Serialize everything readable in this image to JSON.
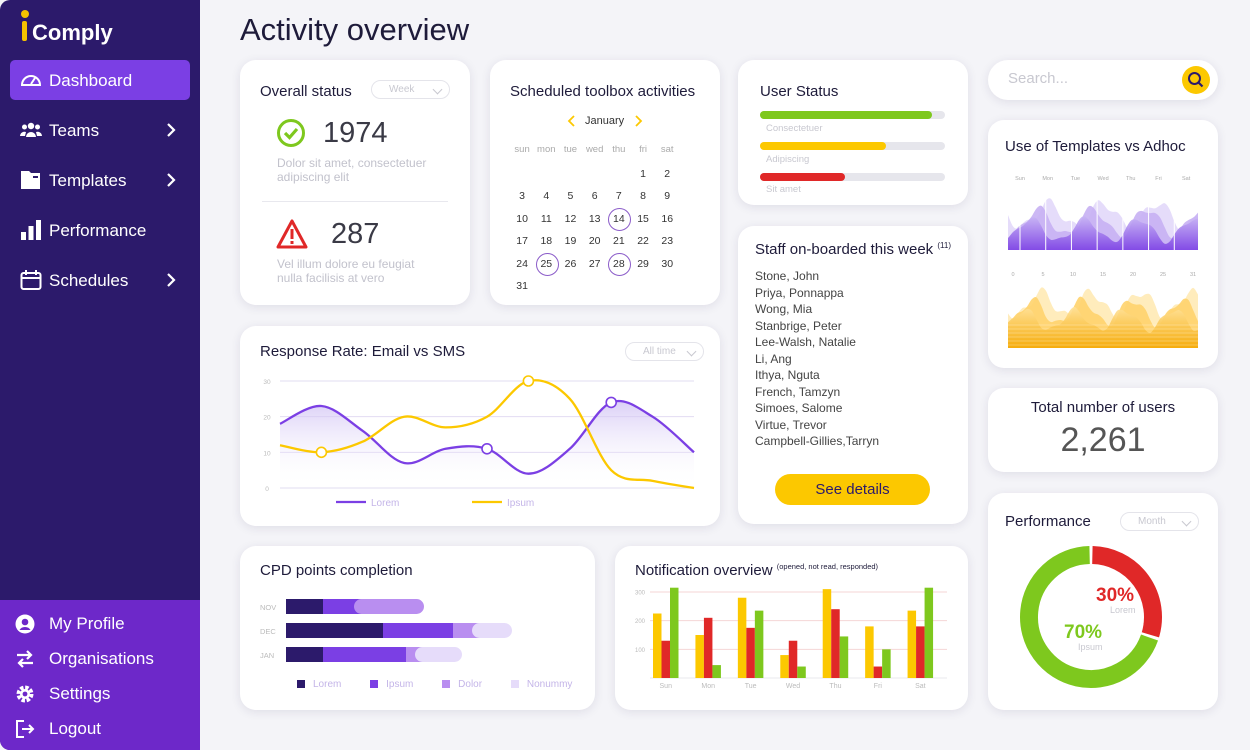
{
  "app": {
    "logo_text": "Comply",
    "page_title": "Activity overview"
  },
  "colors": {
    "sidebar": "#2c1a6b",
    "sidebar_bottom": "#6d28c9",
    "active": "#7b3fe4",
    "purple": "#7b3fe4",
    "yellow": "#fcc800",
    "green": "#7ec81e",
    "red": "#e02828"
  },
  "sidebar": {
    "items": [
      {
        "label": "Dashboard",
        "icon": "dashboard-icon",
        "active": true
      },
      {
        "label": "Teams",
        "icon": "teams-icon"
      },
      {
        "label": "Templates",
        "icon": "templates-icon"
      },
      {
        "label": "Performance",
        "icon": "performance-icon"
      },
      {
        "label": "Schedules",
        "icon": "schedules-icon"
      }
    ],
    "bottom": [
      {
        "label": "My Profile",
        "icon": "profile-icon"
      },
      {
        "label": "Organisations",
        "icon": "organisations-icon"
      },
      {
        "label": "Settings",
        "icon": "settings-icon"
      },
      {
        "label": "Logout",
        "icon": "logout-icon"
      }
    ]
  },
  "overall_status": {
    "title": "Overall status",
    "filter": "Week",
    "ok": {
      "value": "1974",
      "text_line1": "Dolor sit amet, consectetuer",
      "text_line2": "adipiscing elit"
    },
    "warn": {
      "value": "287",
      "text_line1": "Vel illum dolore eu feugiat",
      "text_line2": "nulla facilisis at vero"
    }
  },
  "calendar": {
    "title": "Scheduled toolbox activities",
    "month": "January",
    "weekdays": [
      "sun",
      "mon",
      "tue",
      "wed",
      "thu",
      "fri",
      "sat"
    ],
    "weeks": [
      [
        "",
        "",
        "",
        "",
        "",
        "1",
        "2"
      ],
      [
        "3",
        "4",
        "5",
        "6",
        "7",
        "8",
        "9"
      ],
      [
        "10",
        "11",
        "12",
        "13",
        "14",
        "15",
        "16"
      ],
      [
        "17",
        "18",
        "19",
        "20",
        "21",
        "22",
        "23"
      ],
      [
        "24",
        "25",
        "26",
        "27",
        "28",
        "29",
        "30"
      ],
      [
        "31",
        "",
        "",
        "",
        "",
        "",
        ""
      ]
    ],
    "highlighted": [
      "14",
      "25",
      "28"
    ]
  },
  "user_status": {
    "title": "User Status",
    "bars": [
      {
        "label": "Consectetuer",
        "value": 0.93,
        "color": "#7ec81e"
      },
      {
        "label": "Adipiscing",
        "value": 0.68,
        "color": "#fcc800"
      },
      {
        "label": "Sit amet",
        "value": 0.46,
        "color": "#e02828"
      }
    ]
  },
  "search": {
    "placeholder": "Search..."
  },
  "templates_adhoc": {
    "title": "Use of Templates vs Adhoc",
    "top_labels": [
      "Sun",
      "Mon",
      "Tue",
      "Wed",
      "Thu",
      "Fri",
      "Sat"
    ],
    "bottom_labels": [
      "0",
      "5",
      "10",
      "15",
      "20",
      "25",
      "31"
    ]
  },
  "staff": {
    "title": "Staff on-boarded this week",
    "count": "(11)",
    "names": [
      "Stone, John",
      "Priya, Ponnappa",
      "Wong, Mia",
      "Stanbrige, Peter",
      "Lee-Walsh, Natalie",
      "Li, Ang",
      "Ithya, Nguta",
      "French, Tamzyn",
      "Simoes, Salome",
      "Virtue, Trevor",
      "Campbell-Gillies,Tarryn"
    ],
    "button": "See details"
  },
  "total_users": {
    "title": "Total number of users",
    "value": "2,261"
  },
  "response_rate": {
    "title": "Response Rate: Email vs SMS",
    "filter": "All time",
    "chart_data": {
      "type": "line",
      "x": [
        0,
        1,
        2,
        3,
        4,
        5,
        6,
        7,
        8,
        9,
        10
      ],
      "ylim": [
        0,
        30
      ],
      "yticks": [
        "30",
        "20",
        "10",
        "0"
      ],
      "series": [
        {
          "name": "Lorem",
          "color": "#7b3fe4",
          "values": [
            18,
            23,
            16,
            7,
            11,
            11,
            4,
            11,
            24,
            20,
            10
          ]
        },
        {
          "name": "Ipsum",
          "color": "#fcc800",
          "values": [
            12,
            10,
            13,
            20,
            17,
            20,
            30,
            25,
            5,
            2,
            0
          ]
        }
      ]
    }
  },
  "cpd": {
    "title": "CPD points completion",
    "chart_data": {
      "type": "bar",
      "categories": [
        "NOV",
        "DEC",
        "JAN"
      ],
      "series": [
        {
          "name": "Lorem",
          "color": "#2c1a6b",
          "values": [
            37,
            97,
            37
          ]
        },
        {
          "name": "Ipsum",
          "color": "#7b3fe4",
          "values": [
            39,
            70,
            83
          ]
        },
        {
          "name": "Dolor",
          "color": "#b98ef0",
          "values": [
            62,
            27,
            17
          ]
        },
        {
          "name": "Nonummy",
          "color": "#e6dcfa",
          "values": [
            0,
            32,
            39
          ]
        }
      ]
    }
  },
  "notification": {
    "title": "Notification overview",
    "subtitle": "(opened, not read, responded)",
    "chart_data": {
      "type": "bar",
      "categories": [
        "Sun",
        "Mon",
        "Tue",
        "Wed",
        "Thu",
        "Fri",
        "Sat"
      ],
      "ylim": [
        0,
        300
      ],
      "yticks": [
        "300",
        "200",
        "100"
      ],
      "series": [
        {
          "name": "opened",
          "color": "#fcc800",
          "values": [
            225,
            150,
            280,
            80,
            310,
            180,
            235
          ]
        },
        {
          "name": "not read",
          "color": "#e02828",
          "values": [
            130,
            210,
            175,
            130,
            240,
            40,
            180
          ]
        },
        {
          "name": "responded",
          "color": "#7ec81e",
          "values": [
            315,
            45,
            235,
            40,
            145,
            100,
            315
          ]
        }
      ]
    }
  },
  "performance": {
    "title": "Performance",
    "filter": "Month",
    "red_pct": "30%",
    "red_label": "Lorem",
    "green_pct": "70%",
    "green_label": "Ipsum",
    "chart_data": {
      "type": "pie",
      "values": [
        30,
        70
      ],
      "labels": [
        "Lorem",
        "Ipsum"
      ],
      "colors": [
        "#e02828",
        "#7ec81e"
      ]
    }
  }
}
